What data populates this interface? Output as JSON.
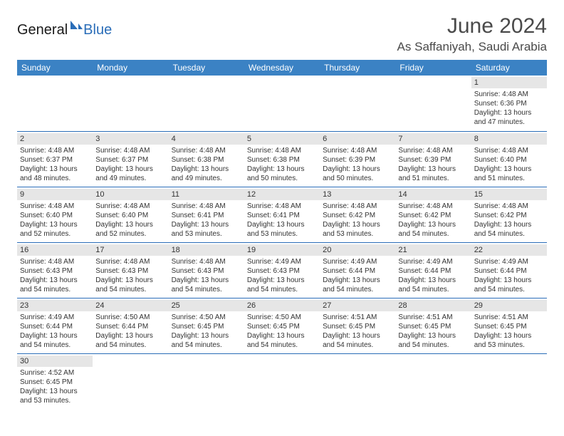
{
  "logo": {
    "text1": "General",
    "text2": "Blue"
  },
  "title": "June 2024",
  "location": "As Saffaniyah, Saudi Arabia",
  "colors": {
    "header_bg": "#3b82c4",
    "header_text": "#ffffff",
    "daynum_bg": "#e6e6e6",
    "cell_border": "#2a6db8",
    "logo_blue": "#2a6db8"
  },
  "weekdays": [
    "Sunday",
    "Monday",
    "Tuesday",
    "Wednesday",
    "Thursday",
    "Friday",
    "Saturday"
  ],
  "weeks": [
    [
      null,
      null,
      null,
      null,
      null,
      null,
      {
        "n": "1",
        "sr": "Sunrise: 4:48 AM",
        "ss": "Sunset: 6:36 PM",
        "d1": "Daylight: 13 hours",
        "d2": "and 47 minutes."
      }
    ],
    [
      {
        "n": "2",
        "sr": "Sunrise: 4:48 AM",
        "ss": "Sunset: 6:37 PM",
        "d1": "Daylight: 13 hours",
        "d2": "and 48 minutes."
      },
      {
        "n": "3",
        "sr": "Sunrise: 4:48 AM",
        "ss": "Sunset: 6:37 PM",
        "d1": "Daylight: 13 hours",
        "d2": "and 49 minutes."
      },
      {
        "n": "4",
        "sr": "Sunrise: 4:48 AM",
        "ss": "Sunset: 6:38 PM",
        "d1": "Daylight: 13 hours",
        "d2": "and 49 minutes."
      },
      {
        "n": "5",
        "sr": "Sunrise: 4:48 AM",
        "ss": "Sunset: 6:38 PM",
        "d1": "Daylight: 13 hours",
        "d2": "and 50 minutes."
      },
      {
        "n": "6",
        "sr": "Sunrise: 4:48 AM",
        "ss": "Sunset: 6:39 PM",
        "d1": "Daylight: 13 hours",
        "d2": "and 50 minutes."
      },
      {
        "n": "7",
        "sr": "Sunrise: 4:48 AM",
        "ss": "Sunset: 6:39 PM",
        "d1": "Daylight: 13 hours",
        "d2": "and 51 minutes."
      },
      {
        "n": "8",
        "sr": "Sunrise: 4:48 AM",
        "ss": "Sunset: 6:40 PM",
        "d1": "Daylight: 13 hours",
        "d2": "and 51 minutes."
      }
    ],
    [
      {
        "n": "9",
        "sr": "Sunrise: 4:48 AM",
        "ss": "Sunset: 6:40 PM",
        "d1": "Daylight: 13 hours",
        "d2": "and 52 minutes."
      },
      {
        "n": "10",
        "sr": "Sunrise: 4:48 AM",
        "ss": "Sunset: 6:40 PM",
        "d1": "Daylight: 13 hours",
        "d2": "and 52 minutes."
      },
      {
        "n": "11",
        "sr": "Sunrise: 4:48 AM",
        "ss": "Sunset: 6:41 PM",
        "d1": "Daylight: 13 hours",
        "d2": "and 53 minutes."
      },
      {
        "n": "12",
        "sr": "Sunrise: 4:48 AM",
        "ss": "Sunset: 6:41 PM",
        "d1": "Daylight: 13 hours",
        "d2": "and 53 minutes."
      },
      {
        "n": "13",
        "sr": "Sunrise: 4:48 AM",
        "ss": "Sunset: 6:42 PM",
        "d1": "Daylight: 13 hours",
        "d2": "and 53 minutes."
      },
      {
        "n": "14",
        "sr": "Sunrise: 4:48 AM",
        "ss": "Sunset: 6:42 PM",
        "d1": "Daylight: 13 hours",
        "d2": "and 54 minutes."
      },
      {
        "n": "15",
        "sr": "Sunrise: 4:48 AM",
        "ss": "Sunset: 6:42 PM",
        "d1": "Daylight: 13 hours",
        "d2": "and 54 minutes."
      }
    ],
    [
      {
        "n": "16",
        "sr": "Sunrise: 4:48 AM",
        "ss": "Sunset: 6:43 PM",
        "d1": "Daylight: 13 hours",
        "d2": "and 54 minutes."
      },
      {
        "n": "17",
        "sr": "Sunrise: 4:48 AM",
        "ss": "Sunset: 6:43 PM",
        "d1": "Daylight: 13 hours",
        "d2": "and 54 minutes."
      },
      {
        "n": "18",
        "sr": "Sunrise: 4:48 AM",
        "ss": "Sunset: 6:43 PM",
        "d1": "Daylight: 13 hours",
        "d2": "and 54 minutes."
      },
      {
        "n": "19",
        "sr": "Sunrise: 4:49 AM",
        "ss": "Sunset: 6:43 PM",
        "d1": "Daylight: 13 hours",
        "d2": "and 54 minutes."
      },
      {
        "n": "20",
        "sr": "Sunrise: 4:49 AM",
        "ss": "Sunset: 6:44 PM",
        "d1": "Daylight: 13 hours",
        "d2": "and 54 minutes."
      },
      {
        "n": "21",
        "sr": "Sunrise: 4:49 AM",
        "ss": "Sunset: 6:44 PM",
        "d1": "Daylight: 13 hours",
        "d2": "and 54 minutes."
      },
      {
        "n": "22",
        "sr": "Sunrise: 4:49 AM",
        "ss": "Sunset: 6:44 PM",
        "d1": "Daylight: 13 hours",
        "d2": "and 54 minutes."
      }
    ],
    [
      {
        "n": "23",
        "sr": "Sunrise: 4:49 AM",
        "ss": "Sunset: 6:44 PM",
        "d1": "Daylight: 13 hours",
        "d2": "and 54 minutes."
      },
      {
        "n": "24",
        "sr": "Sunrise: 4:50 AM",
        "ss": "Sunset: 6:44 PM",
        "d1": "Daylight: 13 hours",
        "d2": "and 54 minutes."
      },
      {
        "n": "25",
        "sr": "Sunrise: 4:50 AM",
        "ss": "Sunset: 6:45 PM",
        "d1": "Daylight: 13 hours",
        "d2": "and 54 minutes."
      },
      {
        "n": "26",
        "sr": "Sunrise: 4:50 AM",
        "ss": "Sunset: 6:45 PM",
        "d1": "Daylight: 13 hours",
        "d2": "and 54 minutes."
      },
      {
        "n": "27",
        "sr": "Sunrise: 4:51 AM",
        "ss": "Sunset: 6:45 PM",
        "d1": "Daylight: 13 hours",
        "d2": "and 54 minutes."
      },
      {
        "n": "28",
        "sr": "Sunrise: 4:51 AM",
        "ss": "Sunset: 6:45 PM",
        "d1": "Daylight: 13 hours",
        "d2": "and 54 minutes."
      },
      {
        "n": "29",
        "sr": "Sunrise: 4:51 AM",
        "ss": "Sunset: 6:45 PM",
        "d1": "Daylight: 13 hours",
        "d2": "and 53 minutes."
      }
    ],
    [
      {
        "n": "30",
        "sr": "Sunrise: 4:52 AM",
        "ss": "Sunset: 6:45 PM",
        "d1": "Daylight: 13 hours",
        "d2": "and 53 minutes."
      },
      null,
      null,
      null,
      null,
      null,
      null
    ]
  ]
}
